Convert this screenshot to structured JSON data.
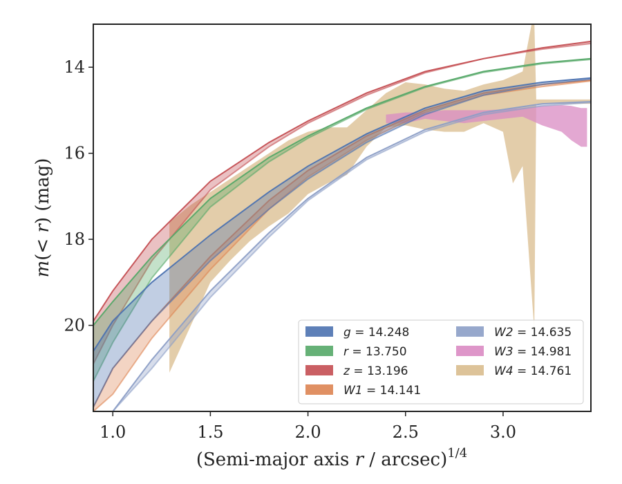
{
  "chart_data": {
    "type": "line",
    "xlabel": "(Semi-major axis r / arcsec)1/4",
    "ylabel": "m(< r) (mag)",
    "xlim": [
      0.9,
      3.45
    ],
    "ylim": [
      22.0,
      13.0
    ],
    "y_inverted": true,
    "x_ticks": [
      "1.0",
      "1.5",
      "2.0",
      "2.5",
      "3.0"
    ],
    "y_ticks": [
      "14",
      "16",
      "18",
      "20"
    ],
    "legend_position": "lower-right",
    "grid": false,
    "series": [
      {
        "name": "g = 14.248",
        "color": "#4c72b0",
        "kind": "model-band",
        "x": [
          0.9,
          1.0,
          1.2,
          1.5,
          1.8,
          2.0,
          2.3,
          2.6,
          2.9,
          3.2,
          3.45
        ],
        "y": [
          20.6,
          19.9,
          19.0,
          17.9,
          16.9,
          16.3,
          15.55,
          14.95,
          14.55,
          14.35,
          14.25
        ],
        "y2": [
          21.9,
          21.0,
          19.9,
          18.5,
          17.3,
          16.6,
          15.75,
          15.1,
          14.65,
          14.4,
          14.28
        ]
      },
      {
        "name": "r = 13.750",
        "color": "#55a868",
        "kind": "model-band",
        "x": [
          0.9,
          1.0,
          1.2,
          1.5,
          1.8,
          2.0,
          2.3,
          2.6,
          2.9,
          3.2,
          3.45
        ],
        "y": [
          20.0,
          19.45,
          18.4,
          17.05,
          16.1,
          15.6,
          14.95,
          14.45,
          14.1,
          13.9,
          13.8
        ],
        "y2": [
          21.3,
          20.4,
          18.9,
          17.25,
          16.2,
          15.65,
          14.98,
          14.47,
          14.12,
          13.92,
          13.82
        ]
      },
      {
        "name": "z = 13.196",
        "color": "#c44e52",
        "kind": "model-band",
        "x": [
          0.9,
          1.0,
          1.2,
          1.5,
          1.8,
          2.0,
          2.3,
          2.6,
          2.9,
          3.2,
          3.45
        ],
        "y": [
          19.9,
          19.2,
          18.0,
          16.65,
          15.75,
          15.25,
          14.6,
          14.1,
          13.8,
          13.55,
          13.4
        ],
        "y2": [
          20.9,
          20.0,
          18.5,
          16.85,
          15.85,
          15.3,
          14.65,
          14.13,
          13.8,
          13.58,
          13.45
        ]
      },
      {
        "name": "W1 = 14.141",
        "color": "#dd8452",
        "kind": "model-band",
        "x": [
          0.9,
          1.0,
          1.2,
          1.5,
          1.8,
          2.0,
          2.3,
          2.6,
          2.9,
          3.2,
          3.45
        ],
        "y": [
          21.9,
          21.0,
          19.9,
          18.4,
          17.1,
          16.4,
          15.6,
          15.0,
          14.6,
          14.4,
          14.3
        ],
        "y2": [
          22.0,
          21.6,
          20.3,
          18.7,
          17.3,
          16.55,
          15.7,
          15.05,
          14.65,
          14.45,
          14.32
        ]
      },
      {
        "name": "W2 = 14.635",
        "color": "#8c9ec6",
        "kind": "model-band",
        "x": [
          0.9,
          1.0,
          1.2,
          1.5,
          1.8,
          2.0,
          2.3,
          2.6,
          2.9,
          3.2,
          3.45
        ],
        "y": [
          22.0,
          22.0,
          20.8,
          19.2,
          17.85,
          17.05,
          16.1,
          15.45,
          15.05,
          14.85,
          14.8
        ],
        "y2": [
          22.0,
          22.0,
          21.0,
          19.35,
          17.95,
          17.1,
          16.15,
          15.5,
          15.1,
          14.9,
          14.82
        ]
      },
      {
        "name": "W3 = 14.981",
        "color": "#da8bc3",
        "kind": "data-band",
        "x": [
          2.4,
          2.5,
          2.6,
          2.7,
          2.8,
          2.9,
          3.0,
          3.1,
          3.2,
          3.3,
          3.35,
          3.4,
          3.43
        ],
        "y": [
          15.1,
          15.05,
          15.05,
          15.0,
          15.0,
          15.0,
          14.98,
          14.95,
          14.9,
          14.88,
          14.9,
          14.95,
          14.95
        ],
        "y2": [
          15.3,
          15.3,
          15.2,
          15.25,
          15.3,
          15.25,
          15.2,
          15.15,
          15.35,
          15.5,
          15.7,
          15.85,
          15.85
        ]
      },
      {
        "name": "W4 = 14.761",
        "color": "#d9bc8e",
        "kind": "data-band",
        "x": [
          1.29,
          1.4,
          1.5,
          1.6,
          1.7,
          1.8,
          1.9,
          2.0,
          2.1,
          2.2,
          2.3,
          2.4,
          2.5,
          2.6,
          2.7,
          2.8,
          2.9,
          3.0,
          3.05,
          3.1,
          3.15,
          3.16,
          3.17,
          3.3,
          3.45
        ],
        "y": [
          17.6,
          17.2,
          16.9,
          16.6,
          16.3,
          16.0,
          15.7,
          15.5,
          15.4,
          15.4,
          15.0,
          14.6,
          14.35,
          14.4,
          14.5,
          14.55,
          14.4,
          14.3,
          14.2,
          14.1,
          12.9,
          12.9,
          14.75,
          14.75,
          14.75
        ],
        "y2": [
          21.1,
          20.0,
          19.0,
          18.5,
          18.05,
          17.7,
          17.4,
          16.95,
          16.7,
          16.5,
          15.85,
          15.4,
          15.35,
          15.45,
          15.5,
          15.5,
          15.3,
          15.5,
          16.7,
          16.3,
          19.5,
          20.1,
          14.85,
          14.85,
          14.85
        ]
      }
    ]
  }
}
